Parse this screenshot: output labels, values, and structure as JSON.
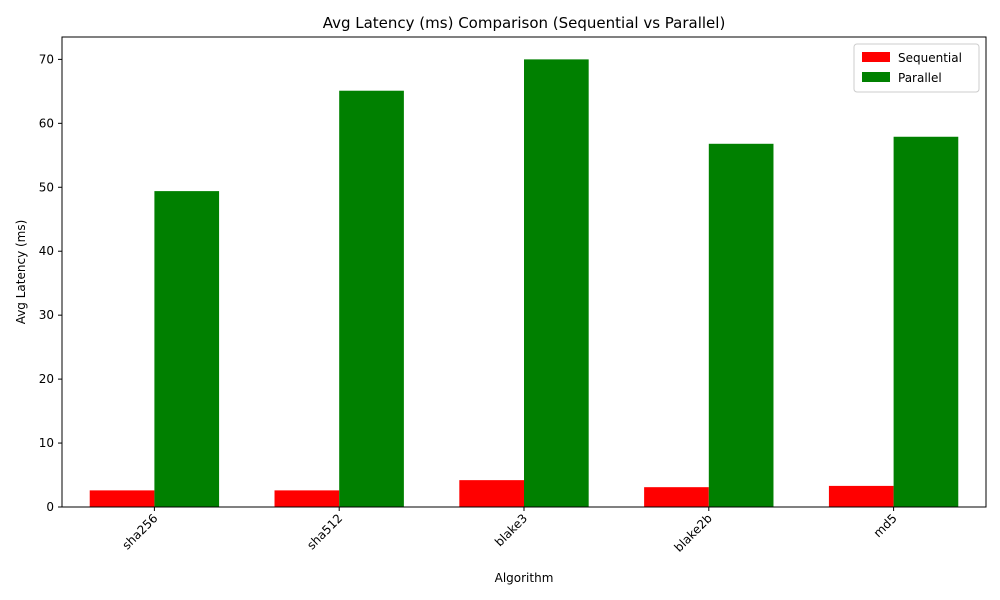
{
  "chart_data": {
    "type": "bar",
    "title": "Avg Latency (ms) Comparison (Sequential vs Parallel)",
    "xlabel": "Algorithm",
    "ylabel": "Avg Latency (ms)",
    "categories": [
      "sha256",
      "sha512",
      "blake3",
      "blake2b",
      "md5"
    ],
    "series": [
      {
        "name": "Sequential",
        "color": "#ff0000",
        "values": [
          2.6,
          2.6,
          4.2,
          3.1,
          3.3
        ]
      },
      {
        "name": "Parallel",
        "color": "#008000",
        "values": [
          49.4,
          65.1,
          70.0,
          56.8,
          57.9
        ]
      }
    ],
    "ylim": [
      0,
      73.5
    ],
    "yticks": [
      0,
      10,
      20,
      30,
      40,
      50,
      60,
      70
    ],
    "xtick_rotation": 45,
    "grid": false,
    "legend_position": "top-right"
  }
}
